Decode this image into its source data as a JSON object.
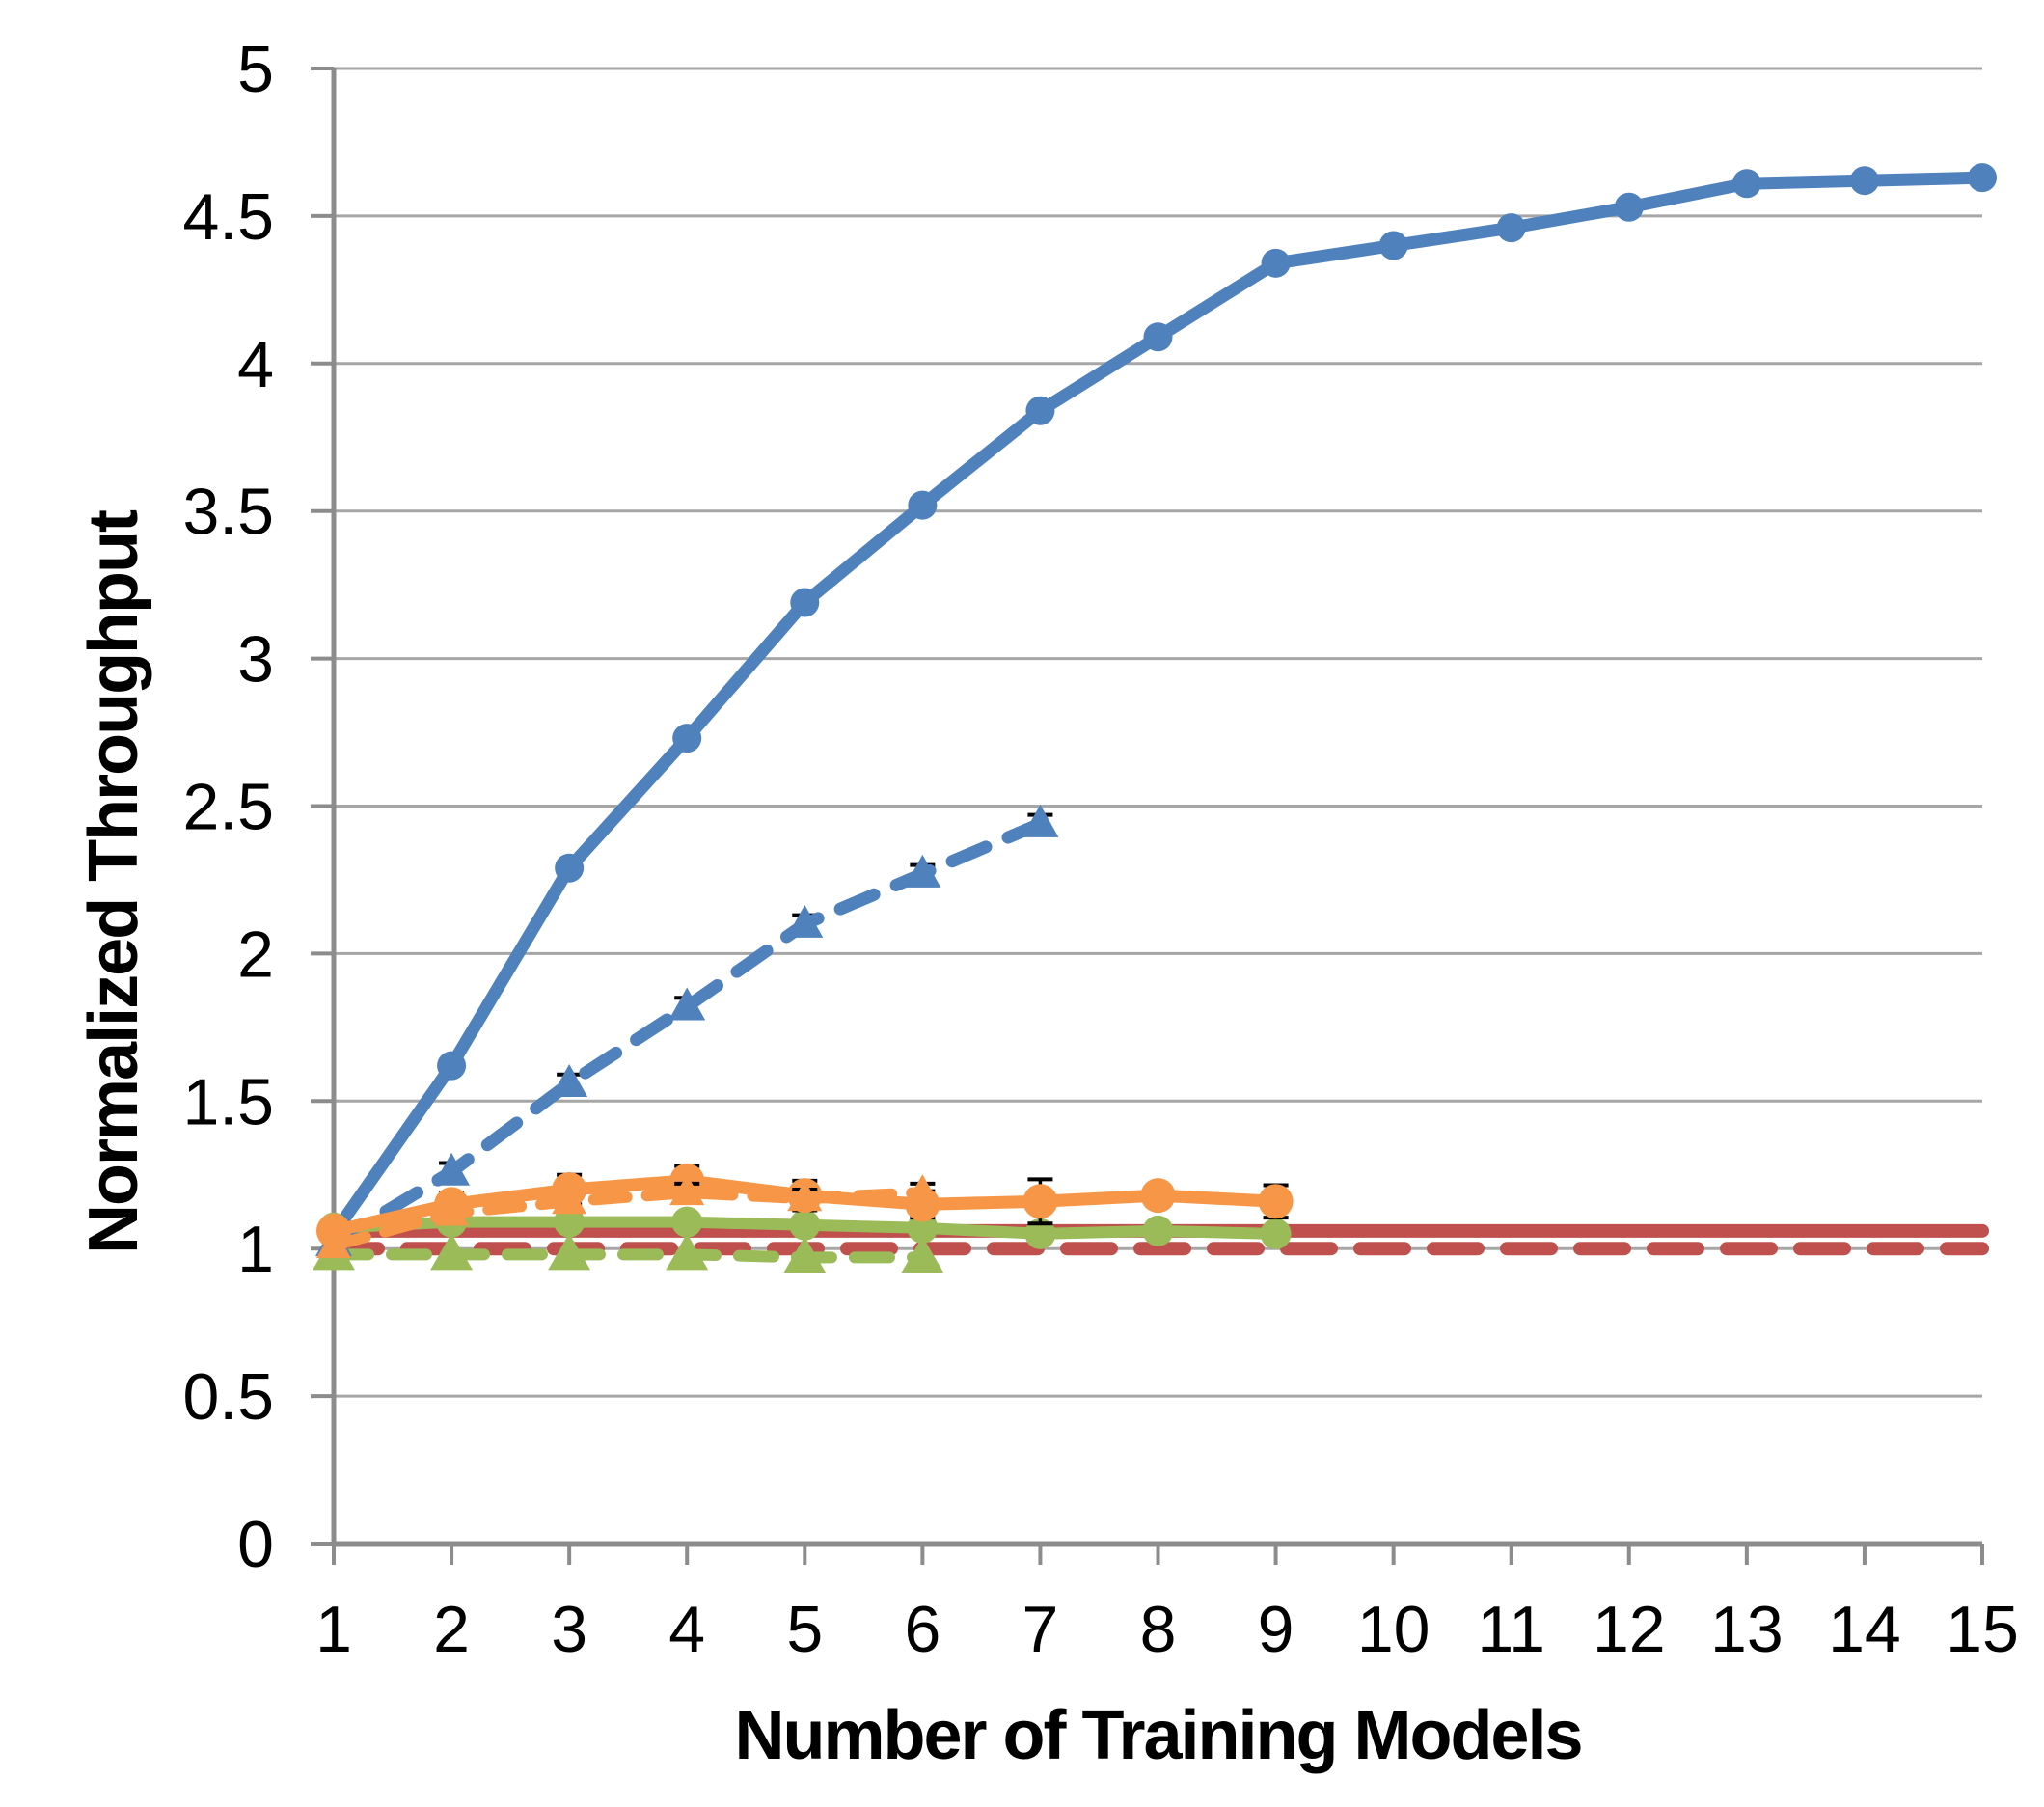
{
  "chart_data": {
    "type": "line",
    "title": "",
    "xlabel": "Number of Training Models",
    "ylabel": "Normalized Throughput",
    "xlim": [
      1,
      15
    ],
    "ylim": [
      0,
      5
    ],
    "x_ticks": [
      1,
      2,
      3,
      4,
      5,
      6,
      7,
      8,
      9,
      10,
      11,
      12,
      13,
      14,
      15
    ],
    "x_tick_labels": [
      "1",
      "2",
      "3",
      "4",
      "5",
      "6",
      "7",
      "8",
      "9",
      "10",
      "11",
      "12",
      "13",
      "14",
      "15"
    ],
    "y_ticks": [
      0,
      0.5,
      1,
      1.5,
      2,
      2.5,
      3,
      3.5,
      4,
      4.5,
      5
    ],
    "y_tick_labels": [
      "0",
      "0.5",
      "1",
      "1.5",
      "2",
      "2.5",
      "3",
      "3.5",
      "4",
      "4.5",
      "5"
    ],
    "grid": "horizontal",
    "legend_position": "none",
    "colors": {
      "blue": "#4f81bd",
      "orange": "#f79646",
      "green": "#9bbb59",
      "red": "#c0504d",
      "gridline": "#a6a6a6",
      "axis": "#8c8c8c",
      "error_bar": "#000000"
    },
    "series": [
      {
        "name": "blue-solid",
        "color": "#4f81bd",
        "style": "solid",
        "marker": "circle",
        "x": [
          1,
          2,
          3,
          4,
          5,
          6,
          7,
          8,
          9,
          10,
          11,
          12,
          13,
          14,
          15
        ],
        "y": [
          1.05,
          1.62,
          2.29,
          2.73,
          3.19,
          3.52,
          3.84,
          4.09,
          4.34,
          4.4,
          4.46,
          4.53,
          4.61,
          4.62,
          4.63
        ]
      },
      {
        "name": "blue-dashed",
        "color": "#4f81bd",
        "style": "dashed",
        "marker": "triangle",
        "x": [
          1,
          2,
          3,
          4,
          5,
          6,
          7
        ],
        "y": [
          1.02,
          1.26,
          1.56,
          1.82,
          2.1,
          2.27,
          2.44
        ],
        "error": [
          null,
          0.03,
          0.03,
          0.03,
          0.03,
          0.03,
          0.03
        ]
      },
      {
        "name": "orange-solid",
        "color": "#f79646",
        "style": "solid",
        "marker": "circle",
        "x": [
          1,
          2,
          3,
          4,
          5,
          6,
          7,
          8,
          9
        ],
        "y": [
          1.06,
          1.15,
          1.2,
          1.23,
          1.18,
          1.15,
          1.16,
          1.18,
          1.16
        ],
        "error": [
          null,
          0.04,
          0.05,
          0.05,
          0.05,
          0.045,
          0.075,
          0.035,
          0.055
        ]
      },
      {
        "name": "orange-dashed",
        "color": "#f79646",
        "style": "dashed",
        "marker": "triangle",
        "x": [
          1,
          2,
          3,
          4,
          5,
          6
        ],
        "y": [
          1.01,
          1.12,
          1.16,
          1.19,
          1.17,
          1.19
        ],
        "error": [
          null,
          null,
          null,
          0.03,
          0.03,
          0.03
        ]
      },
      {
        "name": "green-solid",
        "color": "#9bbb59",
        "style": "solid",
        "marker": "circle",
        "x": [
          1,
          2,
          3,
          4,
          5,
          6,
          7,
          8,
          9
        ],
        "y": [
          1.07,
          1.09,
          1.09,
          1.09,
          1.08,
          1.07,
          1.05,
          1.06,
          1.05
        ]
      },
      {
        "name": "green-dashed",
        "color": "#9bbb59",
        "style": "dashed",
        "marker": "triangle",
        "x": [
          1,
          2,
          3,
          4,
          5,
          6
        ],
        "y": [
          0.98,
          0.98,
          0.98,
          0.98,
          0.97,
          0.97
        ]
      },
      {
        "name": "red-solid",
        "color": "#c0504d",
        "style": "solid",
        "marker": "none",
        "x": [
          1,
          15
        ],
        "y": [
          1.06,
          1.06
        ]
      },
      {
        "name": "red-dashed",
        "color": "#c0504d",
        "style": "dashed",
        "marker": "none",
        "x": [
          1,
          15
        ],
        "y": [
          1.0,
          1.0
        ]
      }
    ]
  }
}
